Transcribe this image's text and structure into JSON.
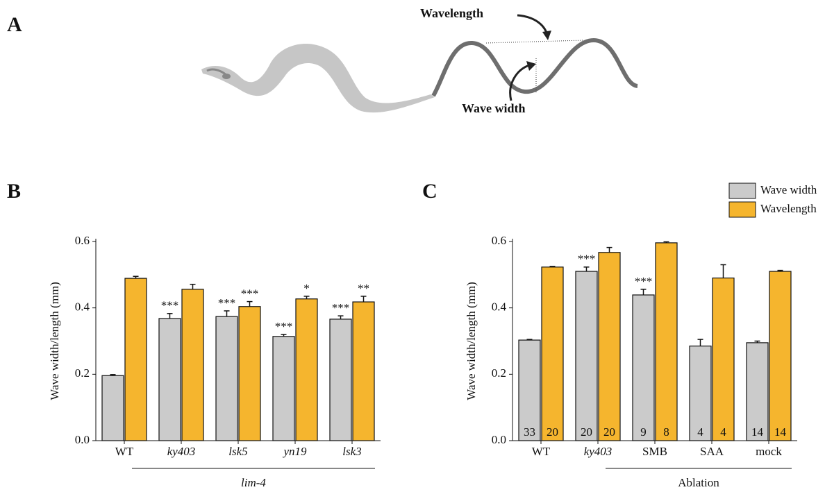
{
  "diagram": {
    "panel": "A",
    "labels": [
      "Wavelength",
      "Wave width"
    ]
  },
  "chart_data": [
    {
      "type": "bar",
      "panel": "B",
      "y_label": "Wave width/length (mm)",
      "categories": [
        "WT",
        "ky403",
        "lsk5",
        "yn19",
        "lsk3"
      ],
      "italic_categories": [
        false,
        true,
        true,
        true,
        true
      ],
      "group": {
        "label": "lim-4",
        "span": [
          1,
          4
        ],
        "italic": true
      },
      "series": [
        {
          "color": "#cbcbcb",
          "values": [
            0.196,
            0.368,
            0.374,
            0.314,
            0.366
          ],
          "errors": [
            0.003,
            0.015,
            0.017,
            0.006,
            0.01
          ],
          "annotations": [
            null,
            "***",
            "***",
            "***",
            "***"
          ]
        },
        {
          "color": "#f5b52e",
          "values": [
            0.489,
            0.456,
            0.404,
            0.427,
            0.418
          ],
          "errors": [
            0.006,
            0.015,
            0.015,
            0.008,
            0.017
          ],
          "annotations": [
            null,
            null,
            "***",
            "*",
            "**"
          ]
        }
      ],
      "ylim": [
        0,
        0.6
      ],
      "yticks": [
        {
          "value": 0,
          "label": "0.0"
        },
        0.2,
        0.4,
        0.6
      ]
    },
    {
      "type": "bar",
      "panel": "C",
      "y_label": "Wave width/length (mm)",
      "categories": [
        "WT",
        "ky403",
        "SMB",
        "SAA",
        "mock"
      ],
      "italic_categories": [
        false,
        true,
        false,
        false,
        false
      ],
      "group": {
        "label": "Ablation",
        "span": [
          2,
          4
        ],
        "italic": false
      },
      "series": [
        {
          "name": "Wave width",
          "color": "#cbcbcb",
          "values": [
            0.303,
            0.51,
            0.439,
            0.285,
            0.295
          ],
          "errors": [
            0.002,
            0.013,
            0.017,
            0.02,
            0.005
          ],
          "annotations": [
            null,
            "***",
            "***",
            null,
            null
          ],
          "counts": [
            33,
            20,
            9,
            4,
            14
          ]
        },
        {
          "name": "Wavelength",
          "color": "#f5b52e",
          "values": [
            0.523,
            0.567,
            0.596,
            0.49,
            0.51
          ],
          "errors": [
            0.002,
            0.015,
            0.003,
            0.04,
            0.003
          ],
          "annotations": [
            null,
            null,
            null,
            null,
            null
          ],
          "counts": [
            20,
            20,
            8,
            4,
            14
          ]
        }
      ],
      "ylim": [
        0,
        0.6
      ],
      "yticks": [
        {
          "value": 0,
          "label": "0.0"
        },
        0.2,
        0.4,
        0.6
      ],
      "legend": "top-right"
    }
  ]
}
